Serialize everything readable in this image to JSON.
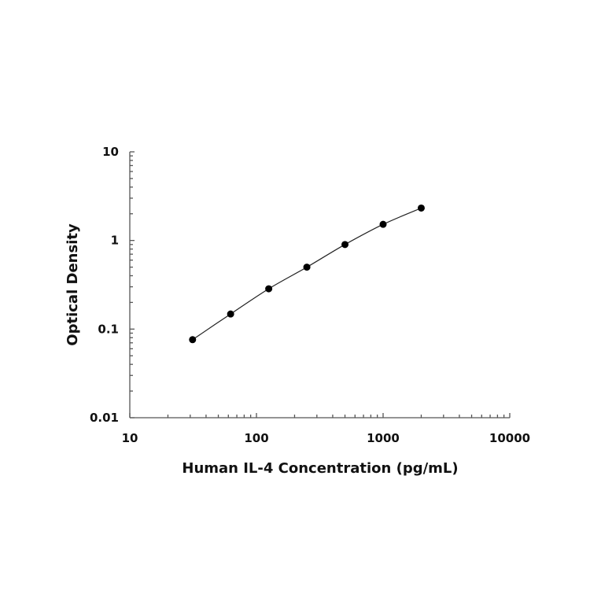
{
  "chart_data": {
    "type": "scatter",
    "title": "",
    "xlabel": "Human IL-4 Concentration (pg/mL)",
    "ylabel": "Optical Density",
    "x_scale": "log",
    "y_scale": "log",
    "xlim": [
      10,
      10000
    ],
    "ylim": [
      0.01,
      10
    ],
    "x_ticks": [
      10,
      100,
      1000,
      10000
    ],
    "x_tick_labels": [
      "10",
      "100",
      "1000",
      "10000"
    ],
    "y_ticks": [
      0.01,
      0.1,
      1,
      10
    ],
    "y_tick_labels": [
      "0.01",
      "0.1",
      "1",
      "10"
    ],
    "grid": false,
    "legend": "none",
    "fit_curve": true,
    "marker_color": "#000000",
    "series": [
      {
        "x": [
          31.3,
          62.5,
          125,
          250,
          500,
          1000,
          2000
        ],
        "y": [
          0.076,
          0.148,
          0.285,
          0.5,
          0.9,
          1.52,
          2.32
        ]
      }
    ]
  }
}
